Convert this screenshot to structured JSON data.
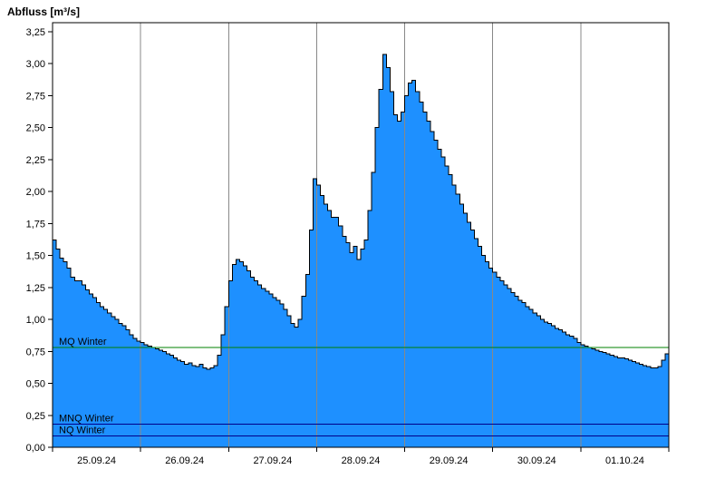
{
  "title": "Abfluss [m³/s]",
  "chart_data": {
    "type": "area",
    "step": true,
    "title": "Abfluss [m³/s]",
    "xlabel": "",
    "ylabel": "Abfluss [m³/s]",
    "x_start": "25.09.24 00:00",
    "x_end": "02.10.24 00:00",
    "hours_per_point": 1,
    "x_tick_labels": [
      "25.09.24",
      "26.09.24",
      "27.09.24",
      "28.09.24",
      "29.09.24",
      "30.09.24",
      "01.10.24"
    ],
    "y_ticks": [
      0.0,
      0.25,
      0.5,
      0.75,
      1.0,
      1.25,
      1.5,
      1.75,
      2.0,
      2.25,
      2.5,
      2.75,
      3.0,
      3.25
    ],
    "y_tick_labels": [
      "0,00",
      "0,25",
      "0,50",
      "0,75",
      "1,00",
      "1,25",
      "1,50",
      "1,75",
      "2,00",
      "2,25",
      "2,50",
      "2,75",
      "3,00",
      "3,25"
    ],
    "y_max": 3.32,
    "ylim": [
      0,
      3.32
    ],
    "grid": "vertical-day-lines",
    "legend_position": "none",
    "series_color": "#1E90FF",
    "outline_color": "#000000",
    "grid_color": "#888888",
    "values": [
      1.62,
      1.55,
      1.48,
      1.45,
      1.4,
      1.33,
      1.3,
      1.3,
      1.27,
      1.23,
      1.2,
      1.17,
      1.13,
      1.1,
      1.08,
      1.05,
      1.02,
      1.0,
      0.97,
      0.95,
      0.92,
      0.88,
      0.85,
      0.83,
      0.82,
      0.8,
      0.79,
      0.78,
      0.77,
      0.76,
      0.75,
      0.73,
      0.72,
      0.7,
      0.68,
      0.67,
      0.65,
      0.66,
      0.64,
      0.63,
      0.65,
      0.62,
      0.61,
      0.62,
      0.64,
      0.72,
      0.88,
      1.1,
      1.3,
      1.43,
      1.47,
      1.45,
      1.42,
      1.38,
      1.33,
      1.3,
      1.27,
      1.24,
      1.22,
      1.2,
      1.17,
      1.15,
      1.12,
      1.08,
      1.03,
      0.97,
      0.94,
      1.0,
      1.18,
      1.35,
      1.7,
      2.1,
      2.05,
      1.97,
      1.9,
      1.85,
      1.8,
      1.8,
      1.73,
      1.65,
      1.6,
      1.52,
      1.57,
      1.47,
      1.55,
      1.62,
      1.85,
      2.15,
      2.5,
      2.8,
      3.07,
      2.97,
      2.78,
      2.6,
      2.55,
      2.62,
      2.75,
      2.85,
      2.87,
      2.78,
      2.7,
      2.62,
      2.55,
      2.47,
      2.4,
      2.33,
      2.27,
      2.2,
      2.13,
      2.05,
      1.98,
      1.9,
      1.83,
      1.76,
      1.7,
      1.63,
      1.57,
      1.5,
      1.45,
      1.4,
      1.37,
      1.33,
      1.3,
      1.27,
      1.24,
      1.21,
      1.18,
      1.15,
      1.13,
      1.1,
      1.08,
      1.05,
      1.03,
      1.0,
      0.98,
      0.97,
      0.95,
      0.93,
      0.92,
      0.9,
      0.88,
      0.87,
      0.85,
      0.82,
      0.8,
      0.79,
      0.78,
      0.77,
      0.76,
      0.75,
      0.74,
      0.73,
      0.72,
      0.71,
      0.7,
      0.7,
      0.69,
      0.68,
      0.67,
      0.66,
      0.65,
      0.64,
      0.63,
      0.62,
      0.62,
      0.63,
      0.68,
      0.73,
      0.77
    ],
    "reference_lines": [
      {
        "label": "MQ Winter",
        "value": 0.78,
        "color": "#008000"
      },
      {
        "label": "MNQ Winter",
        "value": 0.18,
        "color": "#00008B"
      },
      {
        "label": "NQ Winter",
        "value": 0.09,
        "color": "#00008B"
      }
    ]
  }
}
